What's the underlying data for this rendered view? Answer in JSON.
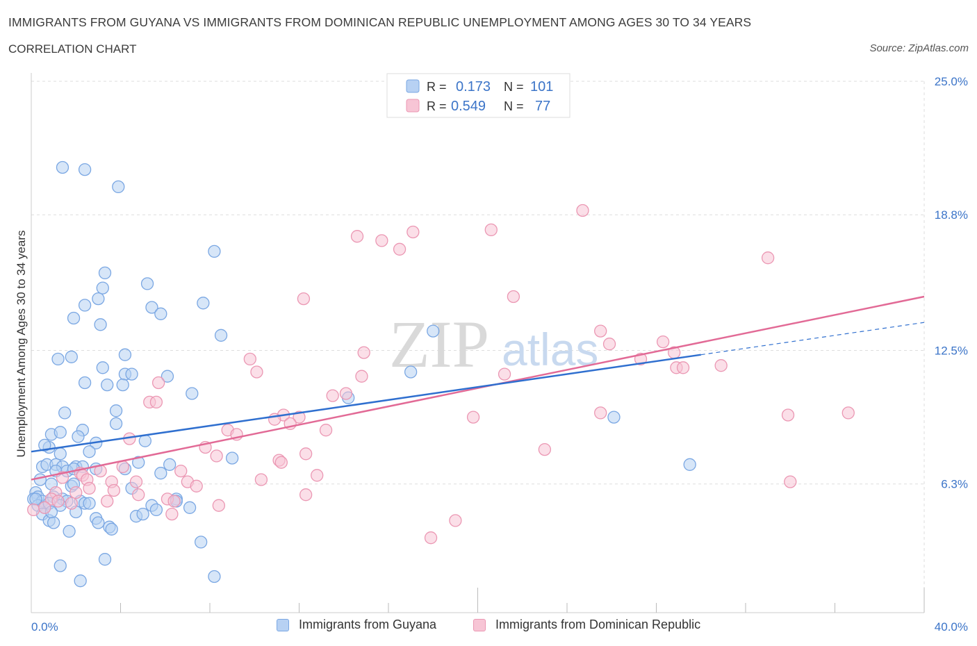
{
  "header": {
    "title": "IMMIGRANTS FROM GUYANA VS IMMIGRANTS FROM DOMINICAN REPUBLIC UNEMPLOYMENT AMONG AGES 30 TO 34 YEARS",
    "subtitle": "CORRELATION CHART",
    "source": "Source: ZipAtlas.com"
  },
  "watermark": {
    "zip": "ZIP",
    "atlas": "atlas"
  },
  "legend": {
    "r_label": "R =",
    "n_label": "N =",
    "rows": [
      {
        "r": "0.173",
        "n": "101"
      },
      {
        "r": "0.549",
        "n": "77"
      }
    ]
  },
  "colors": {
    "blue_fill": "#b7d1f3",
    "blue_stroke": "#7aa7e3",
    "blue_line": "#2f6fcf",
    "pink_fill": "#f7c5d5",
    "pink_stroke": "#eb97b3",
    "pink_line": "#e26a96",
    "tick_text": "#3b74c8",
    "grid": "#dddddd"
  },
  "chart_data": {
    "type": "scatter",
    "xlabel": "",
    "ylabel": "Unemployment Among Ages 30 to 34 years",
    "xlim": [
      0,
      40
    ],
    "ylim": [
      0,
      25
    ],
    "x_tick_labels": [
      "0.0%",
      "40.0%"
    ],
    "y_ticks": [
      6.3,
      12.5,
      18.8,
      25.0
    ],
    "y_tick_labels": [
      "6.3%",
      "12.5%",
      "18.8%",
      "25.0%"
    ],
    "grid": true,
    "legend_position": "top-center",
    "series": [
      {
        "name": "Immigrants from Guyana",
        "points": [
          [
            1.4,
            21.0
          ],
          [
            2.4,
            20.9
          ],
          [
            3.9,
            20.1
          ],
          [
            8.2,
            17.1
          ],
          [
            3.3,
            16.1
          ],
          [
            5.2,
            15.6
          ],
          [
            3.2,
            15.4
          ],
          [
            2.4,
            14.6
          ],
          [
            3.0,
            14.9
          ],
          [
            7.7,
            14.7
          ],
          [
            5.4,
            14.5
          ],
          [
            5.8,
            14.2
          ],
          [
            1.9,
            14.0
          ],
          [
            3.1,
            13.7
          ],
          [
            18.0,
            13.4
          ],
          [
            8.5,
            13.2
          ],
          [
            1.2,
            12.1
          ],
          [
            1.8,
            12.2
          ],
          [
            4.2,
            12.3
          ],
          [
            3.2,
            11.7
          ],
          [
            4.2,
            11.4
          ],
          [
            4.5,
            11.4
          ],
          [
            6.1,
            11.3
          ],
          [
            17.0,
            11.5
          ],
          [
            2.4,
            11.0
          ],
          [
            3.4,
            10.9
          ],
          [
            4.1,
            10.9
          ],
          [
            7.2,
            10.5
          ],
          [
            14.2,
            10.3
          ],
          [
            1.5,
            9.6
          ],
          [
            3.8,
            9.7
          ],
          [
            3.8,
            9.1
          ],
          [
            26.1,
            9.4
          ],
          [
            0.9,
            8.6
          ],
          [
            1.3,
            8.7
          ],
          [
            2.3,
            8.8
          ],
          [
            2.1,
            8.5
          ],
          [
            2.9,
            8.2
          ],
          [
            5.1,
            8.3
          ],
          [
            0.8,
            8.0
          ],
          [
            0.6,
            8.1
          ],
          [
            2.6,
            7.8
          ],
          [
            1.3,
            7.7
          ],
          [
            9.0,
            7.5
          ],
          [
            0.5,
            7.1
          ],
          [
            0.7,
            7.2
          ],
          [
            1.1,
            7.2
          ],
          [
            1.4,
            7.1
          ],
          [
            2.0,
            7.1
          ],
          [
            2.3,
            7.1
          ],
          [
            1.1,
            6.9
          ],
          [
            1.6,
            6.9
          ],
          [
            1.9,
            7.0
          ],
          [
            2.9,
            7.0
          ],
          [
            4.8,
            7.3
          ],
          [
            6.2,
            7.2
          ],
          [
            29.5,
            7.2
          ],
          [
            0.4,
            6.5
          ],
          [
            0.9,
            6.3
          ],
          [
            1.8,
            6.2
          ],
          [
            1.9,
            6.3
          ],
          [
            4.5,
            6.1
          ],
          [
            0.2,
            5.9
          ],
          [
            0.3,
            5.7
          ],
          [
            0.1,
            5.6
          ],
          [
            0.5,
            5.5
          ],
          [
            1.0,
            5.7
          ],
          [
            1.4,
            5.6
          ],
          [
            1.6,
            5.5
          ],
          [
            2.2,
            5.5
          ],
          [
            2.4,
            5.4
          ],
          [
            2.6,
            5.4
          ],
          [
            5.4,
            5.3
          ],
          [
            6.5,
            5.6
          ],
          [
            7.1,
            5.2
          ],
          [
            0.3,
            5.3
          ],
          [
            0.6,
            5.2
          ],
          [
            0.8,
            5.4
          ],
          [
            1.3,
            5.3
          ],
          [
            2.0,
            5.0
          ],
          [
            5.6,
            5.1
          ],
          [
            4.7,
            4.8
          ],
          [
            5.0,
            4.9
          ],
          [
            0.5,
            4.9
          ],
          [
            2.9,
            4.7
          ],
          [
            3.0,
            4.5
          ],
          [
            3.5,
            4.3
          ],
          [
            3.6,
            4.2
          ],
          [
            0.8,
            4.6
          ],
          [
            1.0,
            4.5
          ],
          [
            1.7,
            4.1
          ],
          [
            7.6,
            3.6
          ],
          [
            3.3,
            2.8
          ],
          [
            1.3,
            2.5
          ],
          [
            2.2,
            1.8
          ],
          [
            8.2,
            2.0
          ],
          [
            4.2,
            7.0
          ],
          [
            6.5,
            5.5
          ],
          [
            0.9,
            5.0
          ],
          [
            0.2,
            5.6
          ],
          [
            5.8,
            6.8
          ]
        ],
        "trend": {
          "x": [
            0,
            30.0
          ],
          "y": [
            7.8,
            12.3
          ],
          "dashed_to": [
            40,
            13.8
          ]
        }
      },
      {
        "name": "Immigrants from Dominican Republic",
        "points": [
          [
            24.7,
            19.0
          ],
          [
            17.1,
            18.0
          ],
          [
            20.6,
            18.1
          ],
          [
            14.6,
            17.8
          ],
          [
            15.7,
            17.6
          ],
          [
            16.5,
            17.2
          ],
          [
            33.0,
            16.8
          ],
          [
            12.2,
            14.9
          ],
          [
            21.6,
            15.0
          ],
          [
            25.5,
            13.4
          ],
          [
            25.9,
            12.8
          ],
          [
            28.3,
            12.9
          ],
          [
            28.8,
            12.4
          ],
          [
            14.9,
            12.4
          ],
          [
            9.8,
            12.1
          ],
          [
            27.3,
            12.1
          ],
          [
            28.9,
            11.7
          ],
          [
            29.2,
            11.7
          ],
          [
            30.9,
            11.8
          ],
          [
            10.1,
            11.5
          ],
          [
            14.8,
            11.3
          ],
          [
            5.7,
            11.0
          ],
          [
            21.2,
            11.4
          ],
          [
            13.5,
            10.4
          ],
          [
            14.1,
            10.5
          ],
          [
            5.3,
            10.1
          ],
          [
            5.6,
            10.1
          ],
          [
            25.5,
            9.6
          ],
          [
            36.6,
            9.6
          ],
          [
            19.8,
            9.4
          ],
          [
            33.9,
            9.5
          ],
          [
            11.3,
            9.5
          ],
          [
            12.0,
            9.4
          ],
          [
            10.9,
            9.3
          ],
          [
            8.8,
            8.8
          ],
          [
            9.2,
            8.6
          ],
          [
            13.2,
            8.8
          ],
          [
            11.6,
            9.1
          ],
          [
            4.4,
            8.4
          ],
          [
            7.8,
            8.0
          ],
          [
            23.0,
            7.9
          ],
          [
            12.3,
            7.7
          ],
          [
            8.3,
            7.6
          ],
          [
            11.1,
            7.4
          ],
          [
            11.2,
            7.3
          ],
          [
            3.1,
            6.9
          ],
          [
            4.1,
            7.1
          ],
          [
            6.7,
            6.9
          ],
          [
            2.2,
            6.8
          ],
          [
            2.3,
            6.7
          ],
          [
            1.4,
            6.6
          ],
          [
            2.5,
            6.5
          ],
          [
            12.8,
            6.7
          ],
          [
            10.3,
            6.5
          ],
          [
            3.6,
            6.4
          ],
          [
            4.7,
            6.4
          ],
          [
            7.0,
            6.4
          ],
          [
            7.4,
            6.2
          ],
          [
            2.6,
            6.1
          ],
          [
            3.7,
            6.0
          ],
          [
            2.0,
            5.9
          ],
          [
            1.1,
            5.9
          ],
          [
            4.8,
            5.8
          ],
          [
            3.4,
            5.5
          ],
          [
            6.1,
            5.6
          ],
          [
            6.4,
            5.5
          ],
          [
            12.3,
            5.8
          ],
          [
            8.4,
            5.3
          ],
          [
            0.9,
            5.6
          ],
          [
            1.2,
            5.5
          ],
          [
            1.8,
            5.4
          ],
          [
            0.1,
            5.1
          ],
          [
            6.3,
            4.9
          ],
          [
            34.0,
            6.4
          ],
          [
            19.0,
            4.6
          ],
          [
            17.9,
            3.8
          ],
          [
            0.6,
            5.2
          ]
        ],
        "trend": {
          "x": [
            0,
            40
          ],
          "y": [
            6.5,
            15.0
          ]
        }
      }
    ]
  }
}
